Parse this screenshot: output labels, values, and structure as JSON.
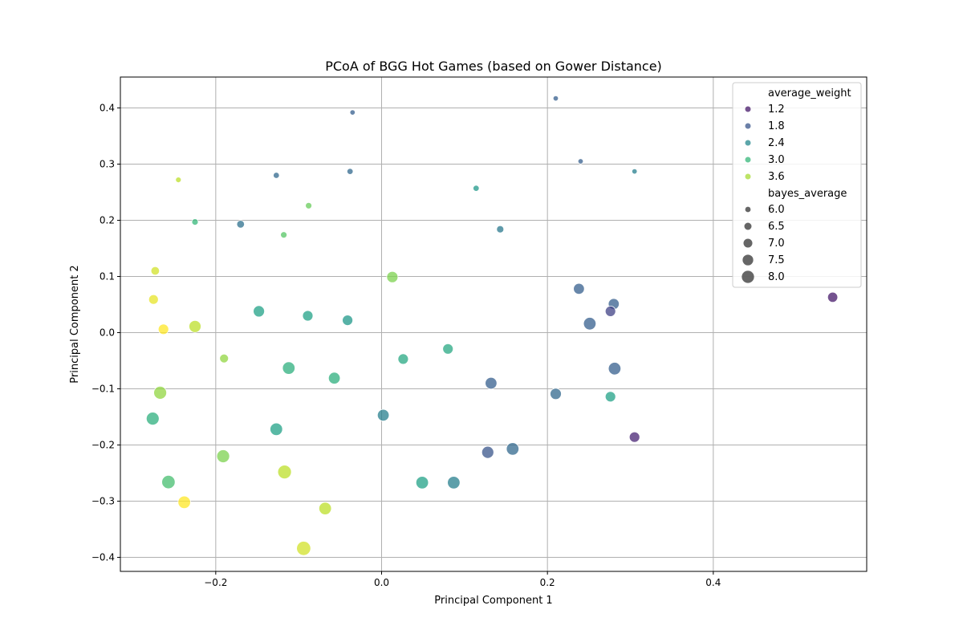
{
  "chart_data": {
    "type": "scatter",
    "title": "PCoA of BGG Hot Games (based on Gower Distance)",
    "xlabel": "Principal Component 1",
    "ylabel": "Principal Component 2",
    "xlim": [
      -0.315,
      0.585
    ],
    "ylim": [
      -0.425,
      0.455
    ],
    "xticks": [
      -0.2,
      0.0,
      0.2,
      0.4
    ],
    "yticks": [
      -0.4,
      -0.3,
      -0.2,
      -0.1,
      0.0,
      0.1,
      0.2,
      0.3,
      0.4
    ],
    "xtick_labels": [
      "−0.2",
      "0.0",
      "0.2",
      "0.4"
    ],
    "ytick_labels": [
      "−0.4",
      "−0.3",
      "−0.2",
      "−0.1",
      "0.0",
      "0.1",
      "0.2",
      "0.3",
      "0.4"
    ],
    "grid": true,
    "legend_position": "top-right",
    "colormap": "viridis",
    "color_variable": "average_weight",
    "size_variable": "bayes_average",
    "color_range": [
      1.0,
      4.0
    ],
    "size_range": [
      5.5,
      8.3
    ],
    "marker_opacity": 0.75,
    "legend": {
      "color_title": "average_weight",
      "color_entries": [
        {
          "label": "1.2",
          "value": 1.2
        },
        {
          "label": "1.8",
          "value": 1.8
        },
        {
          "label": "2.4",
          "value": 2.4
        },
        {
          "label": "3.0",
          "value": 3.0
        },
        {
          "label": "3.6",
          "value": 3.6
        }
      ],
      "size_title": "bayes_average",
      "size_entries": [
        {
          "label": "6.0",
          "value": 6.0
        },
        {
          "label": "6.5",
          "value": 6.5
        },
        {
          "label": "7.0",
          "value": 7.0
        },
        {
          "label": "7.5",
          "value": 7.5
        },
        {
          "label": "8.0",
          "value": 8.0
        }
      ]
    },
    "points": [
      {
        "x": -0.035,
        "y": 0.392,
        "average_weight": 1.9,
        "bayes_average": 5.7
      },
      {
        "x": 0.21,
        "y": 0.417,
        "average_weight": 1.9,
        "bayes_average": 5.7
      },
      {
        "x": 0.24,
        "y": 0.305,
        "average_weight": 1.9,
        "bayes_average": 5.7
      },
      {
        "x": 0.305,
        "y": 0.287,
        "average_weight": 2.3,
        "bayes_average": 5.7
      },
      {
        "x": -0.245,
        "y": 0.272,
        "average_weight": 3.7,
        "bayes_average": 5.8
      },
      {
        "x": -0.127,
        "y": 0.28,
        "average_weight": 2.0,
        "bayes_average": 5.9
      },
      {
        "x": -0.038,
        "y": 0.287,
        "average_weight": 2.0,
        "bayes_average": 5.9
      },
      {
        "x": 0.114,
        "y": 0.257,
        "average_weight": 2.6,
        "bayes_average": 5.9
      },
      {
        "x": -0.225,
        "y": 0.197,
        "average_weight": 3.0,
        "bayes_average": 6.0
      },
      {
        "x": -0.088,
        "y": 0.226,
        "average_weight": 3.3,
        "bayes_average": 6.0
      },
      {
        "x": -0.118,
        "y": 0.174,
        "average_weight": 3.2,
        "bayes_average": 6.0
      },
      {
        "x": -0.17,
        "y": 0.193,
        "average_weight": 2.1,
        "bayes_average": 6.3
      },
      {
        "x": 0.143,
        "y": 0.184,
        "average_weight": 2.2,
        "bayes_average": 6.2
      },
      {
        "x": -0.273,
        "y": 0.11,
        "average_weight": 3.8,
        "bayes_average": 6.5
      },
      {
        "x": -0.275,
        "y": 0.059,
        "average_weight": 3.9,
        "bayes_average": 6.8
      },
      {
        "x": -0.263,
        "y": 0.006,
        "average_weight": 4.0,
        "bayes_average": 7.0
      },
      {
        "x": -0.225,
        "y": 0.011,
        "average_weight": 3.7,
        "bayes_average": 7.4
      },
      {
        "x": 0.013,
        "y": 0.099,
        "average_weight": 3.4,
        "bayes_average": 7.2
      },
      {
        "x": -0.148,
        "y": 0.038,
        "average_weight": 2.7,
        "bayes_average": 7.2
      },
      {
        "x": -0.089,
        "y": 0.03,
        "average_weight": 2.7,
        "bayes_average": 7.0
      },
      {
        "x": -0.041,
        "y": 0.022,
        "average_weight": 2.6,
        "bayes_average": 7.0
      },
      {
        "x": -0.19,
        "y": -0.046,
        "average_weight": 3.5,
        "bayes_average": 6.6
      },
      {
        "x": -0.112,
        "y": -0.063,
        "average_weight": 2.9,
        "bayes_average": 7.5
      },
      {
        "x": -0.057,
        "y": -0.081,
        "average_weight": 2.9,
        "bayes_average": 7.3
      },
      {
        "x": 0.026,
        "y": -0.047,
        "average_weight": 2.8,
        "bayes_average": 7.0
      },
      {
        "x": 0.08,
        "y": -0.029,
        "average_weight": 2.8,
        "bayes_average": 7.0
      },
      {
        "x": -0.267,
        "y": -0.107,
        "average_weight": 3.5,
        "bayes_average": 7.6
      },
      {
        "x": -0.276,
        "y": -0.153,
        "average_weight": 2.9,
        "bayes_average": 7.6
      },
      {
        "x": -0.127,
        "y": -0.172,
        "average_weight": 2.7,
        "bayes_average": 7.5
      },
      {
        "x": 0.002,
        "y": -0.147,
        "average_weight": 2.3,
        "bayes_average": 7.3
      },
      {
        "x": -0.191,
        "y": -0.22,
        "average_weight": 3.4,
        "bayes_average": 7.6
      },
      {
        "x": -0.257,
        "y": -0.266,
        "average_weight": 3.1,
        "bayes_average": 7.7
      },
      {
        "x": -0.117,
        "y": -0.248,
        "average_weight": 3.7,
        "bayes_average": 7.8
      },
      {
        "x": -0.238,
        "y": -0.302,
        "average_weight": 4.0,
        "bayes_average": 7.5
      },
      {
        "x": -0.068,
        "y": -0.313,
        "average_weight": 3.7,
        "bayes_average": 7.5
      },
      {
        "x": -0.094,
        "y": -0.384,
        "average_weight": 3.8,
        "bayes_average": 7.9
      },
      {
        "x": 0.049,
        "y": -0.267,
        "average_weight": 2.7,
        "bayes_average": 7.5
      },
      {
        "x": 0.087,
        "y": -0.267,
        "average_weight": 2.3,
        "bayes_average": 7.5
      },
      {
        "x": 0.132,
        "y": -0.09,
        "average_weight": 1.9,
        "bayes_average": 7.3
      },
      {
        "x": 0.128,
        "y": -0.213,
        "average_weight": 1.8,
        "bayes_average": 7.4
      },
      {
        "x": 0.158,
        "y": -0.207,
        "average_weight": 2.0,
        "bayes_average": 7.5
      },
      {
        "x": 0.21,
        "y": -0.109,
        "average_weight": 2.0,
        "bayes_average": 7.2
      },
      {
        "x": 0.238,
        "y": 0.078,
        "average_weight": 1.9,
        "bayes_average": 7.1
      },
      {
        "x": 0.28,
        "y": 0.051,
        "average_weight": 1.9,
        "bayes_average": 7.1
      },
      {
        "x": 0.276,
        "y": 0.038,
        "average_weight": 1.6,
        "bayes_average": 7.0
      },
      {
        "x": 0.251,
        "y": 0.016,
        "average_weight": 1.9,
        "bayes_average": 7.5
      },
      {
        "x": 0.281,
        "y": -0.064,
        "average_weight": 1.9,
        "bayes_average": 7.5
      },
      {
        "x": 0.276,
        "y": -0.114,
        "average_weight": 2.7,
        "bayes_average": 7.0
      },
      {
        "x": 0.305,
        "y": -0.186,
        "average_weight": 1.3,
        "bayes_average": 7.0
      },
      {
        "x": 0.544,
        "y": 0.063,
        "average_weight": 1.2,
        "bayes_average": 6.9
      }
    ]
  }
}
